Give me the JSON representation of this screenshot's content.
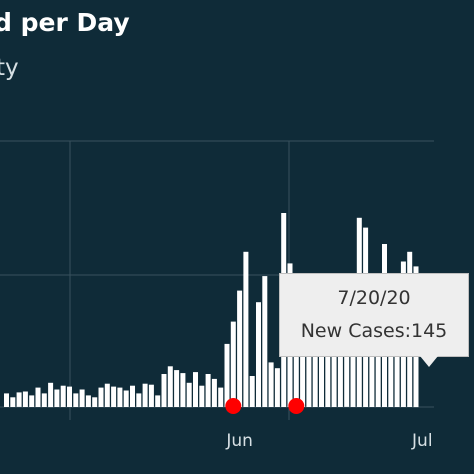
{
  "header": {
    "title": "d per Day",
    "subtitle": "ty"
  },
  "tooltip": {
    "date": "7/20/20",
    "label": "New Cases:145"
  },
  "colors": {
    "background": "#0f2b38",
    "bar": "#ffffff",
    "grid": "#39525e",
    "marker": "#ff0000",
    "tooltip_bg": "#eeeeee"
  },
  "chart_data": {
    "type": "bar",
    "series": [
      {
        "values": [
          14,
          10,
          15,
          16,
          12,
          20,
          14,
          25,
          18,
          22,
          21,
          14,
          18,
          12,
          10,
          20,
          24,
          21,
          20,
          17,
          22,
          14,
          24,
          23,
          12,
          34,
          42,
          38,
          35,
          25,
          36,
          22,
          34,
          29,
          20,
          65,
          88,
          120,
          160,
          32,
          108,
          135,
          46,
          40,
          200,
          148,
          120,
          122,
          118,
          112,
          110,
          60,
          122,
          110,
          115,
          108,
          195,
          185,
          110,
          100,
          168,
          120,
          130,
          150,
          160,
          145
        ]
      }
    ],
    "x_ticks": [
      {
        "label": "Jun",
        "index": 37
      },
      {
        "label": "Jul",
        "index": 66
      }
    ],
    "markers": [
      {
        "index": 36
      },
      {
        "index": 46
      }
    ],
    "grid": true
  }
}
